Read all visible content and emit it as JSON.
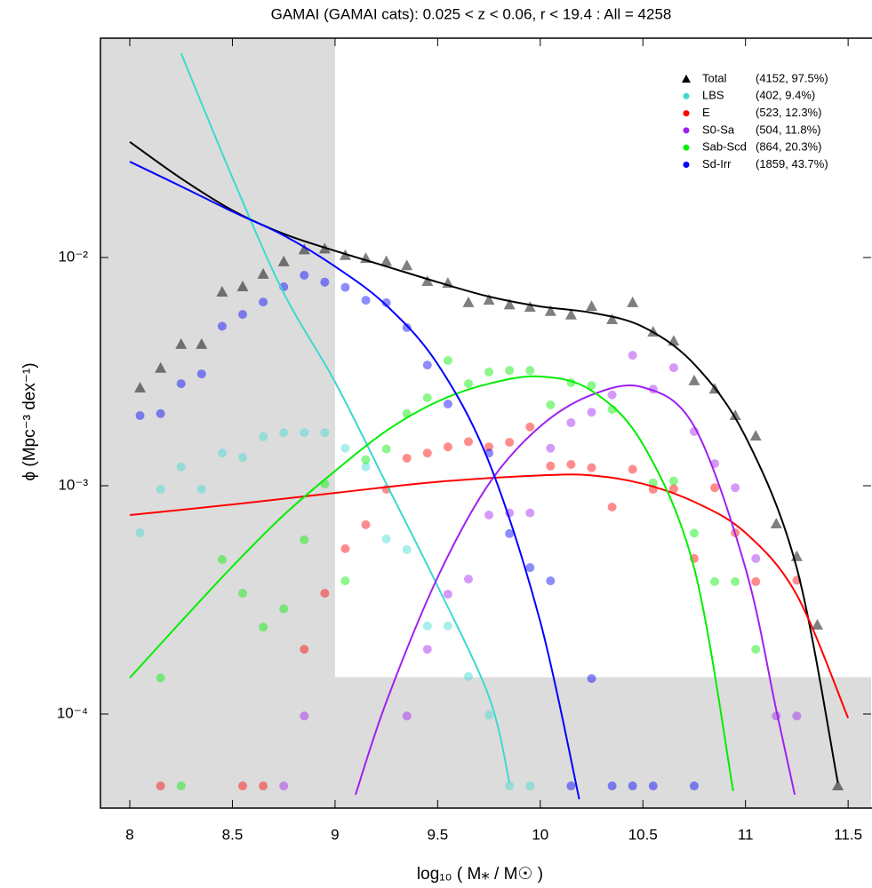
{
  "chart_data": {
    "type": "scatter-fit",
    "title": "GAMAI (GAMAI cats): 0.025 < z < 0.06, r < 19.4 : All = 4258",
    "x_label": "log₁₀ ( M⁎ / M☉ )",
    "y_label": "ϕ (Mpc⁻³ dex⁻¹)",
    "xlim": [
      7.857,
      11.612
    ],
    "ylim": [
      3.87e-05,
      0.0914
    ],
    "log_y": true,
    "xticks": [
      8,
      8.5,
      9,
      9.5,
      10,
      10.5,
      11,
      11.5
    ],
    "yticks": [
      {
        "value": 0.0001,
        "label": "10⁻⁴"
      },
      {
        "value": 0.001,
        "label": "10⁻³"
      },
      {
        "value": 0.01,
        "label": "10⁻²"
      }
    ],
    "shade": {
      "x_below": 9,
      "y_below": 0.000145,
      "color": "#dcdcdc"
    },
    "legend": "top-right",
    "series": [
      {
        "name": "Total",
        "legend_label": "(4152, 97.5%)",
        "color": "#000000",
        "marker": "triangle",
        "points": {
          "x": [
            8.05,
            8.15,
            8.25,
            8.35,
            8.45,
            8.55,
            8.65,
            8.75,
            8.85,
            8.95,
            9.05,
            9.15,
            9.25,
            9.35,
            9.45,
            9.55,
            9.65,
            9.75,
            9.85,
            9.95,
            10.05,
            10.15,
            10.25,
            10.35,
            10.45,
            10.55,
            10.65,
            10.75,
            10.85,
            10.95,
            11.05,
            11.15,
            11.25,
            11.35,
            11.45
          ],
          "values": [
            0.00268,
            0.00327,
            0.00416,
            0.00416,
            0.00705,
            0.00744,
            0.00844,
            0.00957,
            0.0108,
            0.0109,
            0.0102,
            0.0099,
            0.0096,
            0.0092,
            0.00785,
            0.0077,
            0.00634,
            0.0065,
            0.0062,
            0.00605,
            0.0058,
            0.0056,
            0.0061,
            0.00534,
            0.00634,
            0.00471,
            0.0043,
            0.00288,
            0.00265,
            0.00203,
            0.00165,
            0.00068,
            0.000489,
            0.000245,
            4.84e-05
          ]
        },
        "fit": {
          "x": [
            8,
            8.25,
            8.5,
            8.75,
            9,
            9.25,
            9.5,
            9.75,
            10,
            10.25,
            10.5,
            10.75,
            11,
            11.25,
            11.45
          ],
          "values": [
            0.0321,
            0.0222,
            0.0161,
            0.0127,
            0.0107,
            0.00914,
            0.0078,
            0.00674,
            0.0061,
            0.00573,
            0.00497,
            0.00341,
            0.00164,
            0.000435,
            5e-05
          ]
        }
      },
      {
        "name": "LBS",
        "legend_label": "(402, 9.4%)",
        "color": "#3dd9d0",
        "marker": "circle",
        "points": {
          "x": [
            8.05,
            8.15,
            8.25,
            8.35,
            8.45,
            8.55,
            8.65,
            8.75,
            8.85,
            8.95,
            9.05,
            9.15,
            9.25,
            9.35,
            9.45,
            9.55,
            9.65,
            9.75,
            9.85,
            9.95
          ],
          "values": [
            0.000622,
            0.000965,
            0.00121,
            0.000965,
            0.00139,
            0.00133,
            0.00164,
            0.00171,
            0.00171,
            0.00171,
            0.00146,
            0.00121,
            0.000585,
            0.000525,
            0.000243,
            0.000243,
            0.000146,
            9.9e-05,
            4.84e-05,
            4.84e-05
          ]
        },
        "fit": {
          "x": [
            8.25,
            8.5,
            8.75,
            9,
            9.25,
            9.5,
            9.75,
            9.85
          ],
          "values": [
            0.0785,
            0.0224,
            0.00699,
            0.00285,
            0.00102,
            0.000363,
            0.000119,
            5e-05
          ]
        }
      },
      {
        "name": "E",
        "legend_label": "(523, 12.3%)",
        "color": "#ff0000",
        "marker": "circle",
        "points": {
          "x": [
            8.15,
            8.55,
            8.65,
            8.85,
            8.95,
            9.05,
            9.15,
            9.25,
            9.35,
            9.45,
            9.55,
            9.65,
            9.75,
            9.85,
            9.95,
            10.05,
            10.15,
            10.25,
            10.35,
            10.45,
            10.55,
            10.65,
            10.75,
            10.85,
            10.95,
            11.05,
            11.25
          ],
          "values": [
            4.84e-05,
            4.84e-05,
            4.84e-05,
            0.000192,
            0.000338,
            0.00053,
            0.000675,
            0.000965,
            0.00132,
            0.00139,
            0.00148,
            0.00156,
            0.00148,
            0.00155,
            0.00181,
            0.00122,
            0.00124,
            0.0012,
            0.000807,
            0.00118,
            0.000965,
            0.00097,
            0.00048,
            0.00098,
            0.000622,
            0.00038,
            0.000385
          ]
        },
        "fit": {
          "x": [
            8,
            8.5,
            9,
            9.5,
            10,
            10.25,
            10.5,
            10.75,
            11,
            11.25,
            11.5
          ],
          "values": [
            0.000744,
            0.000828,
            0.00093,
            0.00104,
            0.00111,
            0.00111,
            0.00102,
            0.00085,
            0.000622,
            0.000332,
            9.6e-05
          ]
        }
      },
      {
        "name": "S0-Sa",
        "legend_label": "(504, 11.8%)",
        "color": "#a020f0",
        "marker": "circle",
        "points": {
          "x": [
            8.75,
            8.85,
            9.35,
            9.45,
            9.55,
            9.65,
            9.75,
            9.85,
            9.95,
            10.05,
            10.15,
            10.25,
            10.35,
            10.45,
            10.55,
            10.65,
            10.75,
            10.85,
            10.95,
            11.05,
            11.15,
            11.25
          ],
          "values": [
            4.84e-05,
            9.8e-05,
            9.8e-05,
            0.000192,
            0.000335,
            0.00039,
            0.000744,
            0.00076,
            0.00076,
            0.00146,
            0.00189,
            0.0021,
            0.0025,
            0.00373,
            0.00265,
            0.00329,
            0.00173,
            0.00125,
            0.00098,
            0.00048,
            9.8e-05,
            9.8e-05
          ]
        },
        "fit": {
          "x": [
            9.1,
            9.25,
            9.5,
            9.75,
            10,
            10.25,
            10.5,
            10.75,
            11,
            11.15,
            11.24
          ],
          "values": [
            4.43e-05,
            0.000113,
            0.000397,
            0.00102,
            0.00182,
            0.0025,
            0.0027,
            0.00182,
            0.000435,
            0.000104,
            4.43e-05
          ]
        }
      },
      {
        "name": "Sab-Scd",
        "legend_label": "(864, 20.3%)",
        "color": "#00ee00",
        "marker": "circle",
        "points": {
          "x": [
            8.15,
            8.25,
            8.45,
            8.55,
            8.65,
            8.75,
            8.85,
            8.95,
            9.05,
            9.15,
            9.25,
            9.35,
            9.45,
            9.55,
            9.65,
            9.75,
            9.85,
            9.95,
            10.05,
            10.15,
            10.25,
            10.35,
            10.55,
            10.65,
            10.75,
            10.85,
            10.95,
            11.05
          ],
          "values": [
            0.000144,
            4.84e-05,
            0.000475,
            0.000338,
            0.00024,
            0.000289,
            0.00058,
            0.00102,
            0.000383,
            0.0013,
            0.00145,
            0.00207,
            0.00243,
            0.00354,
            0.0028,
            0.00315,
            0.0032,
            0.0032,
            0.00226,
            0.00283,
            0.00275,
            0.00216,
            0.00103,
            0.00105,
            0.00062,
            0.00038,
            0.00038,
            0.000192
          ]
        },
        "fit": {
          "x": [
            8,
            8.25,
            8.5,
            8.75,
            9,
            9.25,
            9.5,
            9.75,
            10,
            10.25,
            10.5,
            10.75,
            10.94
          ],
          "values": [
            0.000144,
            0.000254,
            0.000443,
            0.000744,
            0.00116,
            0.00174,
            0.00234,
            0.0028,
            0.00301,
            0.00261,
            0.00152,
            0.000435,
            4.6e-05
          ]
        }
      },
      {
        "name": "Sd-Irr",
        "legend_label": "(1859, 43.7%)",
        "color": "#0000ff",
        "marker": "circle",
        "points": {
          "x": [
            8.05,
            8.15,
            8.25,
            8.35,
            8.45,
            8.55,
            8.65,
            8.75,
            8.85,
            8.95,
            9.05,
            9.15,
            9.25,
            9.35,
            9.45,
            9.55,
            9.75,
            9.85,
            9.95,
            10.05,
            10.15,
            10.25,
            10.35,
            10.45,
            10.55,
            10.75
          ],
          "values": [
            0.00203,
            0.00207,
            0.0028,
            0.00309,
            0.005,
            0.00563,
            0.00638,
            0.00744,
            0.00836,
            0.0078,
            0.0074,
            0.0065,
            0.00634,
            0.00493,
            0.00338,
            0.00228,
            0.00139,
            0.000617,
            0.000438,
            0.000383,
            4.84e-05,
            0.000143,
            4.84e-05,
            4.84e-05,
            4.84e-05,
            4.84e-05
          ]
        },
        "fit": {
          "x": [
            8,
            8.25,
            8.5,
            8.75,
            9,
            9.25,
            9.5,
            9.75,
            10,
            10.19
          ],
          "values": [
            0.0263,
            0.0205,
            0.0159,
            0.0125,
            0.00914,
            0.00617,
            0.00341,
            0.00127,
            0.000254,
            4.23e-05
          ]
        }
      }
    ]
  }
}
